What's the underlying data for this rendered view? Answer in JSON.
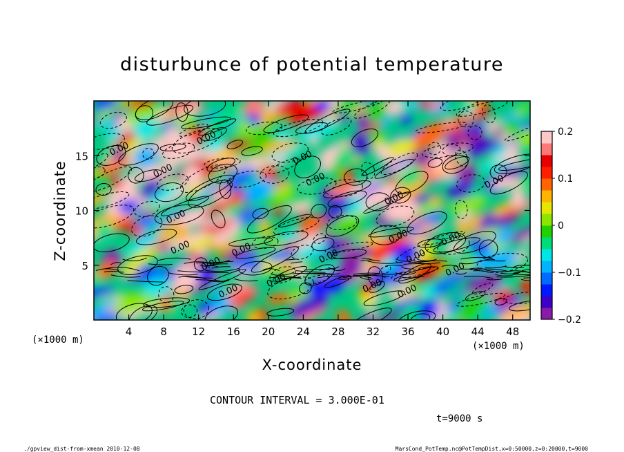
{
  "chart_data": {
    "type": "heatmap",
    "title": "disturbunce of potential temperature",
    "xlabel": "X-coordinate",
    "ylabel": "Z-coordinate",
    "x_unit_left": "(×1000 m)",
    "x_unit_right": "(×1000 m)",
    "xlim": [
      0,
      50
    ],
    "ylim": [
      0,
      20
    ],
    "xticks": [
      4,
      8,
      12,
      16,
      20,
      24,
      28,
      32,
      36,
      40,
      44,
      48
    ],
    "yticks": [
      5,
      10,
      15
    ],
    "colorbar": {
      "ticks": [
        0.2,
        0.1,
        0,
        -0.1,
        -0.2
      ],
      "tick_labels": [
        "0.2",
        "0.1",
        "0",
        "−0.1",
        "−0.2"
      ],
      "range": [
        -0.2,
        0.2
      ],
      "colors": [
        "#8a1aa8",
        "#3c00c8",
        "#0018ff",
        "#006cff",
        "#00b4ff",
        "#00e6e6",
        "#00dc78",
        "#1ed200",
        "#8ce600",
        "#e6e600",
        "#ffb400",
        "#ff6400",
        "#ff1e00",
        "#e60000",
        "#ff7878",
        "#ffc8c8"
      ]
    },
    "contour_label": "0.00",
    "contour_interval_text": "CONTOUR INTERVAL = 3.000E-01",
    "time_text": "t=9000 s"
  },
  "footer": {
    "left": "./gpview_dist-from-xmean   2010-12-08",
    "right": "MarsCond_PotTemp.nc@PotTempDist,x=0:50000,z=0:20000,t=9000"
  }
}
